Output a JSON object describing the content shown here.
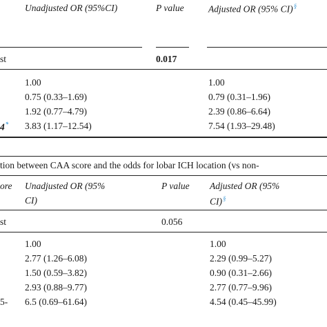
{
  "table1": {
    "headers": {
      "unadjusted": "Unadjusted OR (95%CI)",
      "pvalue": "P value",
      "adjusted": "Adjusted OR (95% CI)",
      "adjusted_mark": "§"
    },
    "trend_row": {
      "label": "st",
      "pvalue": "0.017"
    },
    "rows": [
      {
        "label": "",
        "unadjusted": "1.00",
        "adjusted": "1.00"
      },
      {
        "label": "",
        "unadjusted": "0.75 (0.33–1.69)",
        "adjusted": "0.79 (0.31–1.96)"
      },
      {
        "label": "",
        "unadjusted": "1.92 (0.77–4.79)",
        "adjusted": "2.39 (0.86–6.64)"
      },
      {
        "label": "4",
        "label_mark": "*",
        "unadjusted": "3.83 (1.17–12.54)",
        "adjusted": "7.54 (1.93–29.48)"
      }
    ]
  },
  "table2": {
    "caption": "tion between CAA score and the odds for lobar ICH location (vs non-",
    "headers": {
      "score": "ore",
      "unadjusted_l1": "Unadjusted OR (95%",
      "unadjusted_l2": "CI)",
      "pvalue": "P value",
      "adjusted_l1": "Adjusted OR (95%",
      "adjusted_l2": "CI)",
      "adjusted_mark": "§"
    },
    "trend_row": {
      "label": "st",
      "pvalue": "0.056"
    },
    "rows": [
      {
        "label": "",
        "unadjusted": "1.00",
        "adjusted": "1.00"
      },
      {
        "label": "",
        "unadjusted": "2.77 (1.26–6.08)",
        "adjusted": "2.29 (0.99–5.27)"
      },
      {
        "label": "",
        "unadjusted": "1.50 (0.59–3.82)",
        "adjusted": "0.90 (0.31–2.66)"
      },
      {
        "label": "",
        "unadjusted": "2.93 (0.88–9.77)",
        "adjusted": "2.77 (0.77–9.96)"
      },
      {
        "label": "5-",
        "unadjusted": "6.5 (0.69–61.64)",
        "adjusted": "4.54 (0.45–45.99)"
      }
    ]
  }
}
